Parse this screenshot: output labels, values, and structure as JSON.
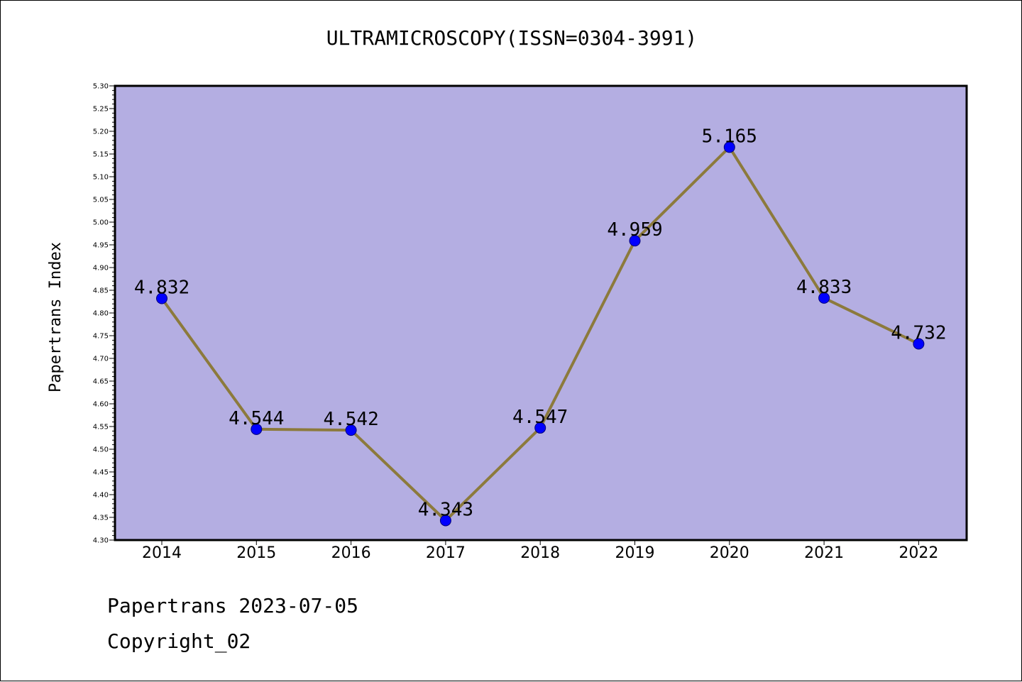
{
  "chart_data": {
    "type": "line",
    "title": "ULTRAMICROSCOPY(ISSN=0304-3991)",
    "ylabel": "Papertrans Index",
    "xlabel": "",
    "categories": [
      "2014",
      "2015",
      "2016",
      "2017",
      "2018",
      "2019",
      "2020",
      "2021",
      "2022"
    ],
    "values": [
      4.832,
      4.544,
      4.542,
      4.343,
      4.547,
      4.959,
      5.165,
      4.833,
      4.732
    ],
    "data_labels": [
      "4.832",
      "4.544",
      "4.542",
      "4.343",
      "4.547",
      "4.959",
      "5.165",
      "4.833",
      "4.732"
    ],
    "ylim": [
      4.3,
      5.3
    ],
    "yticks": [
      "4.30",
      "4.35",
      "4.40",
      "4.45",
      "4.50",
      "4.55",
      "4.60",
      "4.65",
      "4.70",
      "4.75",
      "4.80",
      "4.85",
      "4.90",
      "4.95",
      "5.00",
      "5.05",
      "5.10",
      "5.15",
      "5.20",
      "5.25",
      "5.30"
    ],
    "grid": false,
    "colors": {
      "plot_background": "#b4aee2",
      "line": "#8c7a3c",
      "marker": "#0000ff",
      "marker_edge": "#00007a"
    }
  },
  "footer": {
    "line1": "Papertrans 2023-07-05",
    "line2": "Copyright_02"
  }
}
